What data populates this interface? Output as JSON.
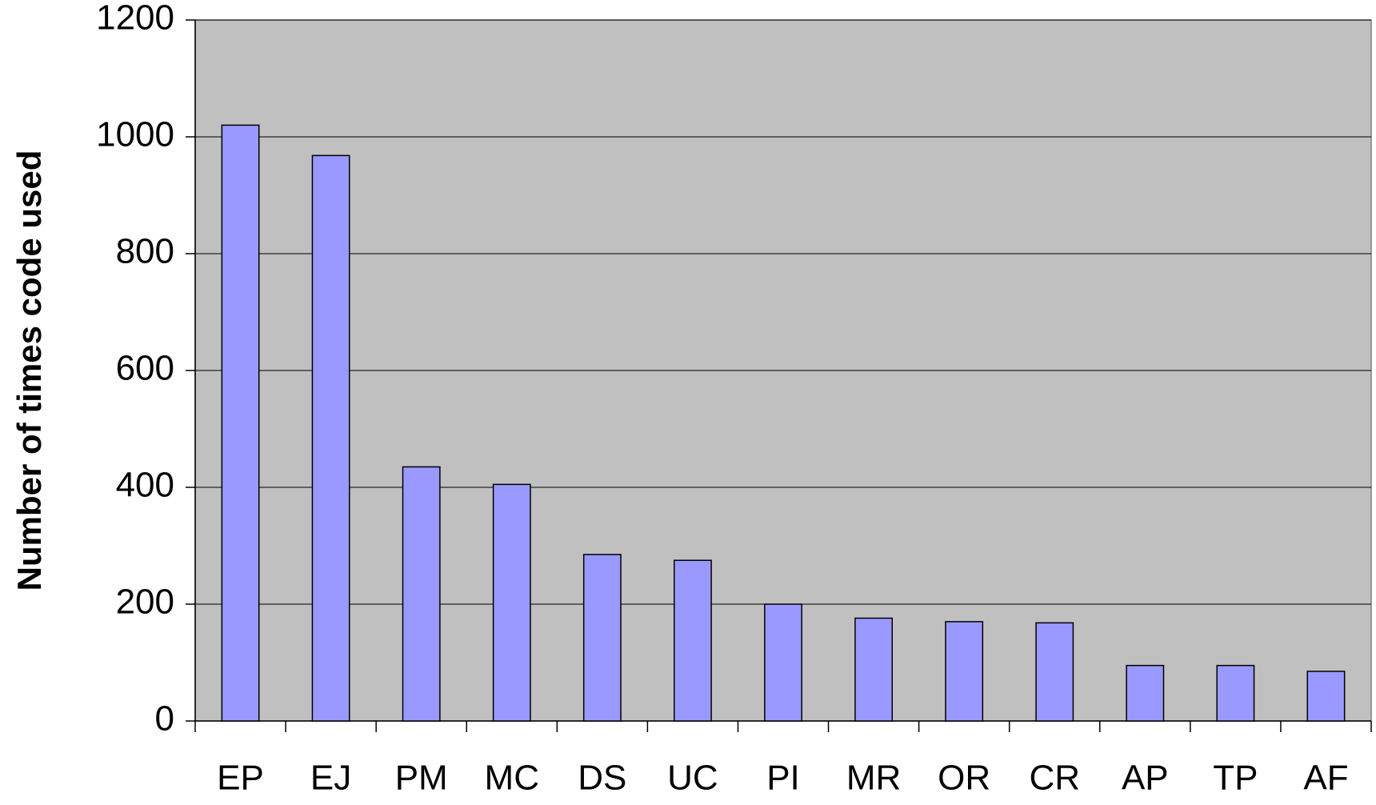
{
  "chart_data": {
    "type": "bar",
    "y_label": "Number of times code used",
    "categories": [
      "EP",
      "EJ",
      "PM",
      "MC",
      "DS",
      "UC",
      "PI",
      "MR",
      "OR",
      "CR",
      "AP",
      "TP",
      "AF"
    ],
    "values": [
      1020,
      968,
      435,
      405,
      285,
      275,
      200,
      176,
      170,
      168,
      95,
      95,
      85
    ],
    "color": "#9999ff",
    "background": "#c0c0c0",
    "ylim": [
      0,
      1200
    ],
    "yticks": [
      0,
      200,
      400,
      600,
      800,
      1000,
      1200
    ],
    "grid": true
  }
}
